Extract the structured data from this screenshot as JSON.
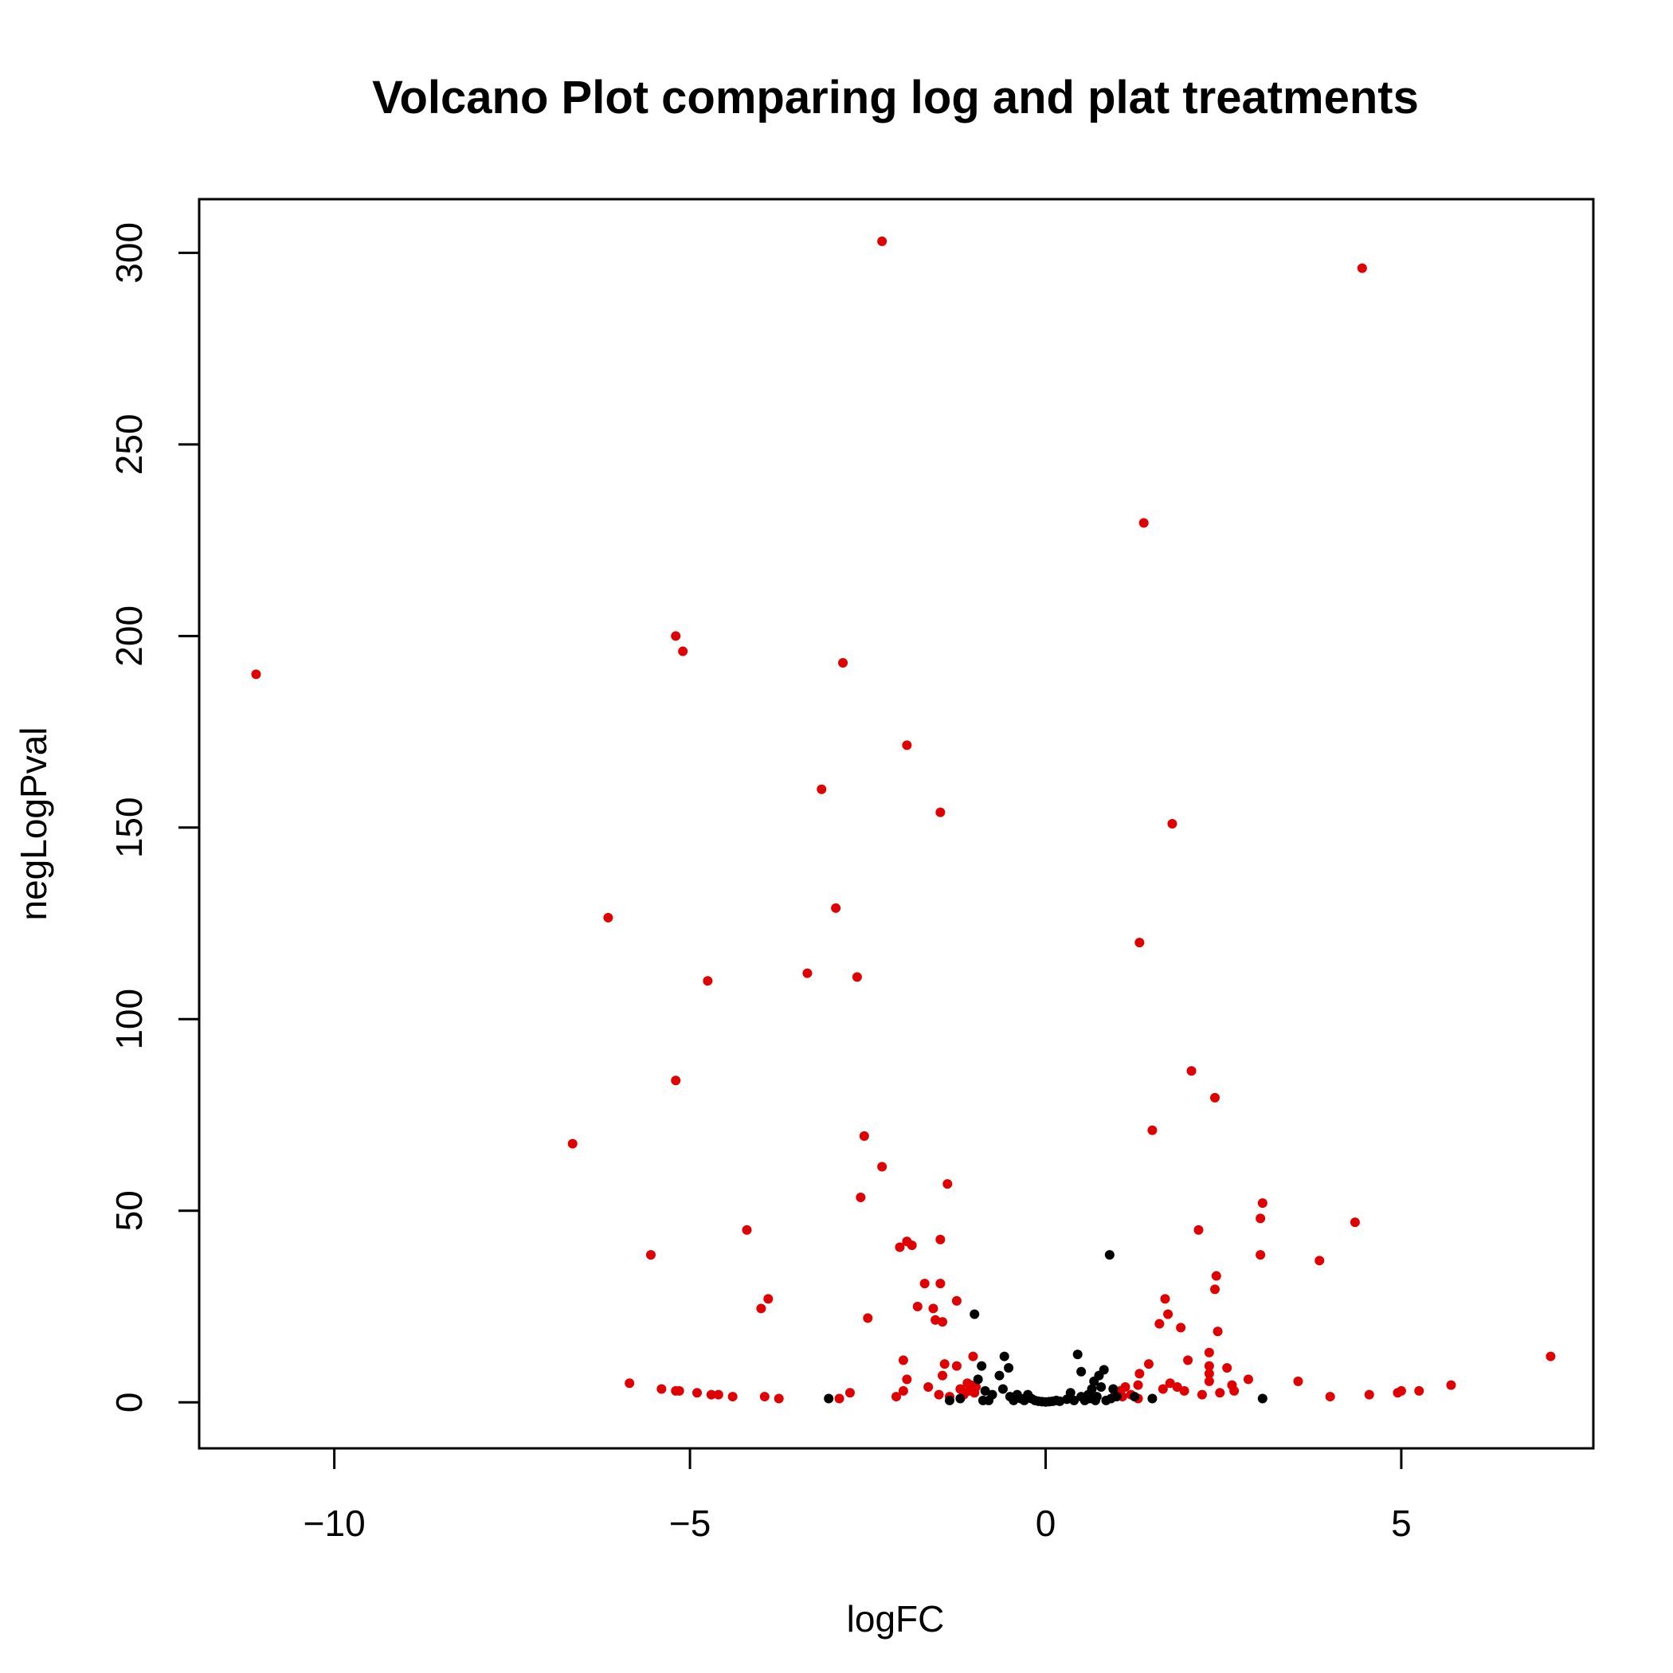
{
  "chart_data": {
    "type": "scatter",
    "title": "Volcano Plot comparing log and plat treatments",
    "xlabel": "logFC",
    "ylabel": "negLogPval",
    "xlim": [
      -11.9,
      7.7
    ],
    "ylim": [
      -12,
      314
    ],
    "xticks": [
      -10,
      -5,
      0,
      5
    ],
    "xtick_labels": [
      "−10",
      "−5",
      "0",
      "5"
    ],
    "yticks": [
      0,
      50,
      100,
      150,
      200,
      250,
      300
    ],
    "ytick_labels": [
      "0",
      "50",
      "100",
      "150",
      "200",
      "250",
      "300"
    ],
    "grid": false,
    "legend": "none",
    "colors": {
      "significant": "#e00000",
      "not_significant": "#000000"
    },
    "series": [
      {
        "color": "#e00000",
        "points": [
          [
            -11.1,
            190
          ],
          [
            -6.65,
            67.5
          ],
          [
            -6.15,
            126.5
          ],
          [
            -5.55,
            38.5
          ],
          [
            -5.85,
            5
          ],
          [
            -5.4,
            3.5
          ],
          [
            -5.2,
            84
          ],
          [
            -5.2,
            200
          ],
          [
            -5.1,
            196
          ],
          [
            -5.2,
            3
          ],
          [
            -5.15,
            3
          ],
          [
            -4.9,
            2.5
          ],
          [
            -4.7,
            2
          ],
          [
            -4.75,
            110
          ],
          [
            -4.6,
            2
          ],
          [
            -4.4,
            1.5
          ],
          [
            -4.2,
            45
          ],
          [
            -4.0,
            24.5
          ],
          [
            -3.9,
            27
          ],
          [
            -3.95,
            1.5
          ],
          [
            -3.75,
            1
          ],
          [
            -3.35,
            112
          ],
          [
            -3.15,
            160
          ],
          [
            -2.95,
            129
          ],
          [
            -2.9,
            1
          ],
          [
            -2.85,
            193
          ],
          [
            -2.75,
            2.5
          ],
          [
            -2.65,
            111
          ],
          [
            -2.6,
            53.5
          ],
          [
            -2.55,
            69.5
          ],
          [
            -2.5,
            22
          ],
          [
            -2.3,
            61.5
          ],
          [
            -2.3,
            303
          ],
          [
            -2.1,
            1.5
          ],
          [
            -2.05,
            40.5
          ],
          [
            -2.0,
            11
          ],
          [
            -2.0,
            3
          ],
          [
            -1.95,
            171.5
          ],
          [
            -1.95,
            42
          ],
          [
            -1.95,
            6
          ],
          [
            -1.88,
            41
          ],
          [
            -1.8,
            25
          ],
          [
            -1.7,
            31
          ],
          [
            -1.65,
            4
          ],
          [
            -1.58,
            24.5
          ],
          [
            -1.55,
            21.5
          ],
          [
            -1.5,
            2
          ],
          [
            -1.48,
            31
          ],
          [
            -1.48,
            42.5
          ],
          [
            -1.48,
            154
          ],
          [
            -1.45,
            21
          ],
          [
            -1.45,
            7
          ],
          [
            -1.42,
            10
          ],
          [
            -1.38,
            57
          ],
          [
            -1.35,
            1.5
          ],
          [
            -1.25,
            26.5
          ],
          [
            -1.25,
            9.5
          ],
          [
            -1.2,
            3.5
          ],
          [
            -1.15,
            2
          ],
          [
            -1.1,
            5
          ],
          [
            -1.08,
            3
          ],
          [
            -1.05,
            4.5
          ],
          [
            -1.02,
            12
          ],
          [
            -1.0,
            2.5
          ],
          [
            -0.98,
            4
          ],
          [
            0.98,
            2.5
          ],
          [
            1.05,
            3
          ],
          [
            1.08,
            1.5
          ],
          [
            1.12,
            4
          ],
          [
            1.2,
            2
          ],
          [
            1.3,
            4.5
          ],
          [
            1.3,
            1
          ],
          [
            1.32,
            7.5
          ],
          [
            1.32,
            120
          ],
          [
            1.38,
            229.5
          ],
          [
            1.45,
            10
          ],
          [
            1.5,
            71
          ],
          [
            1.6,
            20.5
          ],
          [
            1.65,
            3.5
          ],
          [
            1.68,
            27
          ],
          [
            1.72,
            23
          ],
          [
            1.75,
            5
          ],
          [
            1.78,
            151
          ],
          [
            1.85,
            4
          ],
          [
            1.9,
            19.5
          ],
          [
            1.95,
            3
          ],
          [
            2.0,
            11
          ],
          [
            2.05,
            86.5
          ],
          [
            2.15,
            45
          ],
          [
            2.2,
            2
          ],
          [
            2.3,
            9.5
          ],
          [
            2.3,
            5.5
          ],
          [
            2.3,
            7.5
          ],
          [
            2.3,
            13
          ],
          [
            2.38,
            29.5
          ],
          [
            2.38,
            79.5
          ],
          [
            2.4,
            33
          ],
          [
            2.42,
            18.5
          ],
          [
            2.45,
            2.5
          ],
          [
            2.55,
            9
          ],
          [
            2.62,
            4.5
          ],
          [
            2.65,
            3
          ],
          [
            2.85,
            6
          ],
          [
            3.02,
            38.5
          ],
          [
            3.02,
            48
          ],
          [
            3.05,
            52
          ],
          [
            3.55,
            5.5
          ],
          [
            3.85,
            37
          ],
          [
            4.0,
            1.5
          ],
          [
            4.35,
            47
          ],
          [
            4.45,
            296
          ],
          [
            4.55,
            2
          ],
          [
            4.95,
            2.5
          ],
          [
            5.0,
            3
          ],
          [
            5.25,
            3
          ],
          [
            5.7,
            4.5
          ],
          [
            7.1,
            12
          ]
        ]
      },
      {
        "color": "#000000",
        "points": [
          [
            -3.05,
            1
          ],
          [
            -1.35,
            0.5
          ],
          [
            -1.2,
            1
          ],
          [
            -1.0,
            23
          ],
          [
            -0.95,
            6
          ],
          [
            -0.9,
            9.5
          ],
          [
            -0.88,
            0.5
          ],
          [
            -0.85,
            3
          ],
          [
            -0.8,
            0.5
          ],
          [
            -0.75,
            2
          ],
          [
            -0.65,
            7
          ],
          [
            -0.6,
            3.5
          ],
          [
            -0.58,
            12
          ],
          [
            -0.52,
            9
          ],
          [
            -0.5,
            1.5
          ],
          [
            -0.45,
            0.5
          ],
          [
            -0.4,
            2
          ],
          [
            -0.35,
            1
          ],
          [
            -0.3,
            0.5
          ],
          [
            -0.25,
            2
          ],
          [
            -0.2,
            1
          ],
          [
            -0.15,
            0.5
          ],
          [
            -0.1,
            0.3
          ],
          [
            -0.05,
            0.2
          ],
          [
            0.0,
            0.1
          ],
          [
            0.05,
            0.2
          ],
          [
            0.1,
            0.3
          ],
          [
            0.15,
            0.5
          ],
          [
            0.2,
            0.3
          ],
          [
            0.3,
            0.8
          ],
          [
            0.35,
            2.5
          ],
          [
            0.4,
            0.5
          ],
          [
            0.45,
            12.5
          ],
          [
            0.5,
            1.5
          ],
          [
            0.5,
            8
          ],
          [
            0.55,
            0.5
          ],
          [
            0.6,
            2
          ],
          [
            0.62,
            1
          ],
          [
            0.65,
            3.5
          ],
          [
            0.68,
            5.5
          ],
          [
            0.7,
            0.5
          ],
          [
            0.72,
            1.5
          ],
          [
            0.75,
            7
          ],
          [
            0.78,
            4
          ],
          [
            0.82,
            8.5
          ],
          [
            0.85,
            0.5
          ],
          [
            0.9,
            38.5
          ],
          [
            0.92,
            1
          ],
          [
            0.95,
            3.5
          ],
          [
            1.0,
            1.5
          ],
          [
            1.25,
            1.5
          ],
          [
            1.5,
            1
          ],
          [
            3.05,
            1
          ]
        ]
      }
    ]
  }
}
